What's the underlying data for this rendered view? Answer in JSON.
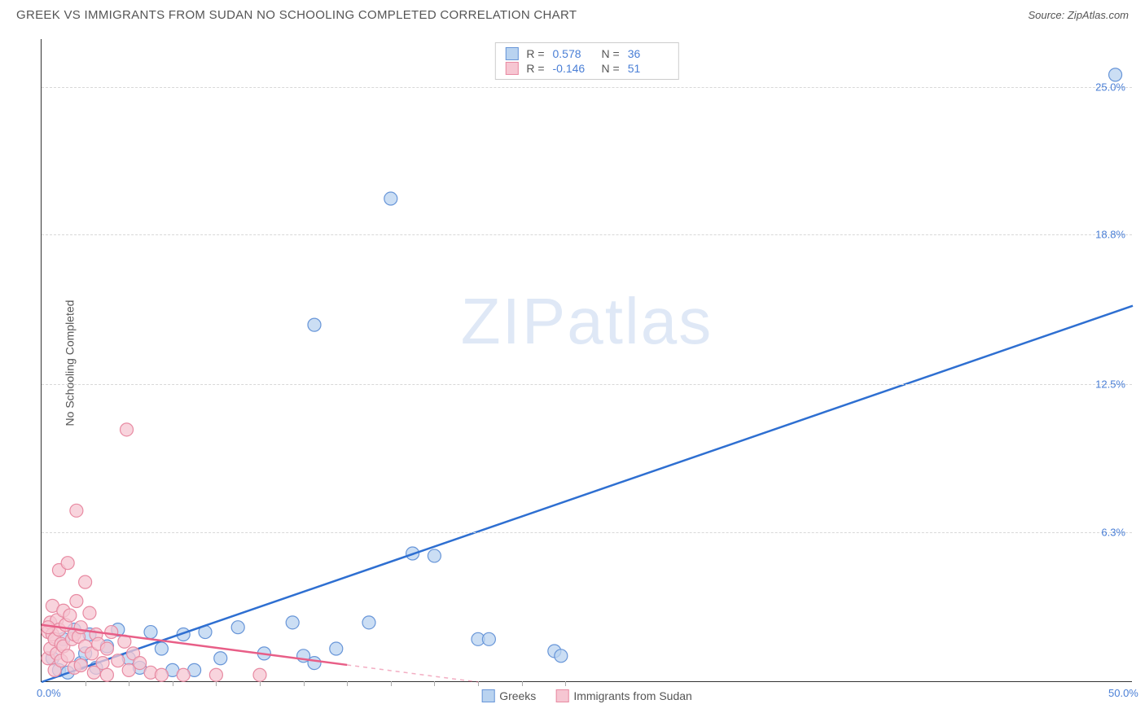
{
  "header": {
    "title": "GREEK VS IMMIGRANTS FROM SUDAN NO SCHOOLING COMPLETED CORRELATION CHART",
    "source": "Source: ZipAtlas.com"
  },
  "watermark": {
    "part1": "ZIP",
    "part2": "atlas"
  },
  "chart": {
    "type": "scatter",
    "ylabel": "No Schooling Completed",
    "background_color": "#ffffff",
    "grid_color": "#d8d8d8",
    "axis_color": "#333333",
    "xlim": [
      0,
      50
    ],
    "ylim": [
      0,
      27
    ],
    "xticks": [
      {
        "val": 0.0,
        "label": "0.0%"
      },
      {
        "val": 50.0,
        "label": "50.0%"
      }
    ],
    "xtick_minor": [
      2,
      4,
      6,
      8,
      10,
      12,
      14,
      16,
      18,
      20,
      22,
      24
    ],
    "yticks": [
      {
        "val": 6.3,
        "label": "6.3%"
      },
      {
        "val": 12.5,
        "label": "12.5%"
      },
      {
        "val": 18.8,
        "label": "18.8%"
      },
      {
        "val": 25.0,
        "label": "25.0%"
      }
    ],
    "series": [
      {
        "name": "Greeks",
        "color_fill": "#b9d3f0",
        "color_stroke": "#6795d8",
        "line_color": "#2e6fd1",
        "marker_radius": 8,
        "marker_opacity": 0.75,
        "R": "0.578",
        "N": "36",
        "regression": {
          "x1": 0,
          "y1": 0,
          "x2": 50,
          "y2": 15.8,
          "dash_from_x": null
        },
        "points": [
          [
            0.5,
            1.0
          ],
          [
            0.8,
            0.5
          ],
          [
            1.0,
            1.8
          ],
          [
            1.2,
            0.4
          ],
          [
            1.5,
            2.2
          ],
          [
            1.8,
            0.8
          ],
          [
            2.0,
            1.2
          ],
          [
            2.2,
            2.0
          ],
          [
            2.5,
            0.6
          ],
          [
            3.0,
            1.5
          ],
          [
            3.5,
            2.2
          ],
          [
            4.0,
            1.0
          ],
          [
            4.5,
            0.6
          ],
          [
            5.0,
            2.1
          ],
          [
            5.5,
            1.4
          ],
          [
            6.0,
            0.5
          ],
          [
            6.5,
            2.0
          ],
          [
            7.0,
            0.5
          ],
          [
            7.5,
            2.1
          ],
          [
            8.2,
            1.0
          ],
          [
            9.0,
            2.3
          ],
          [
            10.2,
            1.2
          ],
          [
            11.5,
            2.5
          ],
          [
            12.0,
            1.1
          ],
          [
            12.5,
            0.8
          ],
          [
            13.5,
            1.4
          ],
          [
            15.0,
            2.5
          ],
          [
            17.0,
            5.4
          ],
          [
            18.0,
            5.3
          ],
          [
            20.0,
            1.8
          ],
          [
            20.5,
            1.8
          ],
          [
            23.5,
            1.3
          ],
          [
            23.8,
            1.1
          ],
          [
            16.0,
            20.3
          ],
          [
            12.5,
            15.0
          ],
          [
            49.2,
            25.5
          ]
        ]
      },
      {
        "name": "Immigrants from Sudan",
        "color_fill": "#f6c6d2",
        "color_stroke": "#e88aa2",
        "line_color": "#e85e87",
        "marker_radius": 8,
        "marker_opacity": 0.75,
        "R": "-0.146",
        "N": "51",
        "regression": {
          "x1": 0,
          "y1": 2.4,
          "x2": 20,
          "y2": 0.0,
          "dash_from_x": 14
        },
        "points": [
          [
            0.3,
            2.1
          ],
          [
            0.3,
            1.0
          ],
          [
            0.4,
            2.5
          ],
          [
            0.4,
            1.4
          ],
          [
            0.5,
            2.0
          ],
          [
            0.5,
            3.2
          ],
          [
            0.6,
            0.5
          ],
          [
            0.6,
            1.8
          ],
          [
            0.7,
            2.6
          ],
          [
            0.7,
            1.2
          ],
          [
            0.8,
            4.7
          ],
          [
            0.8,
            2.2
          ],
          [
            0.9,
            1.6
          ],
          [
            0.9,
            0.9
          ],
          [
            1.0,
            3.0
          ],
          [
            1.0,
            1.5
          ],
          [
            1.1,
            2.4
          ],
          [
            1.2,
            5.0
          ],
          [
            1.2,
            1.1
          ],
          [
            1.3,
            2.8
          ],
          [
            1.4,
            1.8
          ],
          [
            1.5,
            0.6
          ],
          [
            1.5,
            2.0
          ],
          [
            1.6,
            3.4
          ],
          [
            1.7,
            1.9
          ],
          [
            1.8,
            0.7
          ],
          [
            1.8,
            2.3
          ],
          [
            2.0,
            1.5
          ],
          [
            2.0,
            4.2
          ],
          [
            2.2,
            2.9
          ],
          [
            2.3,
            1.2
          ],
          [
            2.4,
            0.4
          ],
          [
            2.5,
            2.0
          ],
          [
            2.6,
            1.6
          ],
          [
            2.8,
            0.8
          ],
          [
            3.0,
            1.4
          ],
          [
            3.0,
            0.3
          ],
          [
            3.2,
            2.1
          ],
          [
            3.5,
            0.9
          ],
          [
            3.8,
            1.7
          ],
          [
            4.0,
            0.5
          ],
          [
            4.2,
            1.2
          ],
          [
            4.5,
            0.8
          ],
          [
            5.0,
            0.4
          ],
          [
            5.5,
            0.3
          ],
          [
            6.5,
            0.3
          ],
          [
            8.0,
            0.3
          ],
          [
            10.0,
            0.3
          ],
          [
            1.6,
            7.2
          ],
          [
            3.9,
            10.6
          ],
          [
            0.3,
            2.3
          ]
        ]
      }
    ],
    "bottom_legend": [
      {
        "label": "Greeks",
        "fill": "#b9d3f0",
        "stroke": "#6795d8"
      },
      {
        "label": "Immigrants from Sudan",
        "fill": "#f6c6d2",
        "stroke": "#e88aa2"
      }
    ]
  }
}
